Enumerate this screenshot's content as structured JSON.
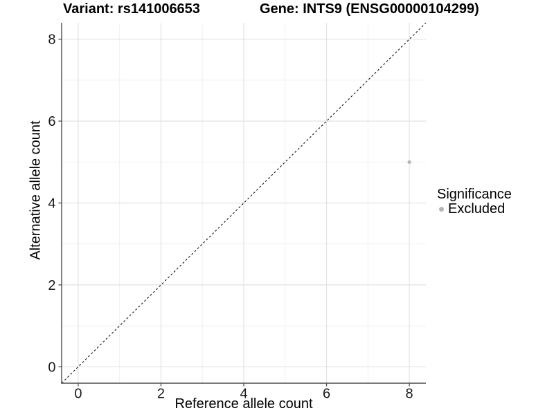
{
  "chart_data": {
    "type": "scatter",
    "title_left": "Variant: rs141006653",
    "title_right": "Gene: INTS9 (ENSG00000104299)",
    "xlabel": "Reference allele count",
    "ylabel": "Alternative allele count",
    "xlim": [
      -0.4,
      8.4
    ],
    "ylim": [
      -0.4,
      8.4
    ],
    "xticks": [
      0,
      2,
      4,
      6,
      8
    ],
    "yticks": [
      0,
      2,
      4,
      6,
      8
    ],
    "xminor": [
      1,
      3,
      5,
      7
    ],
    "yminor": [
      1,
      3,
      5,
      7
    ],
    "grid": "major and minor gridlines, light gray on white panel",
    "reference_line": {
      "description": "identity line y = x",
      "style": "dashed",
      "color": "#111111",
      "from": [
        -0.4,
        -0.4
      ],
      "to": [
        8.4,
        8.4
      ]
    },
    "series": [
      {
        "name": "Excluded",
        "color": "#b5b5b5",
        "points": [
          {
            "x": 8,
            "y": 5
          }
        ]
      }
    ],
    "legend": {
      "title": "Significance",
      "position": "right",
      "entries": [
        {
          "label": "Excluded",
          "color": "#b5b5b5"
        }
      ]
    }
  },
  "colors": {
    "background": "#ffffff",
    "grid_major": "#e2e2e2",
    "grid_minor": "#efefef",
    "axis_line": "#4d4d4d",
    "tick_text": "#1a1a1a",
    "title_text": "#000000",
    "point": "#b5b5b5"
  }
}
